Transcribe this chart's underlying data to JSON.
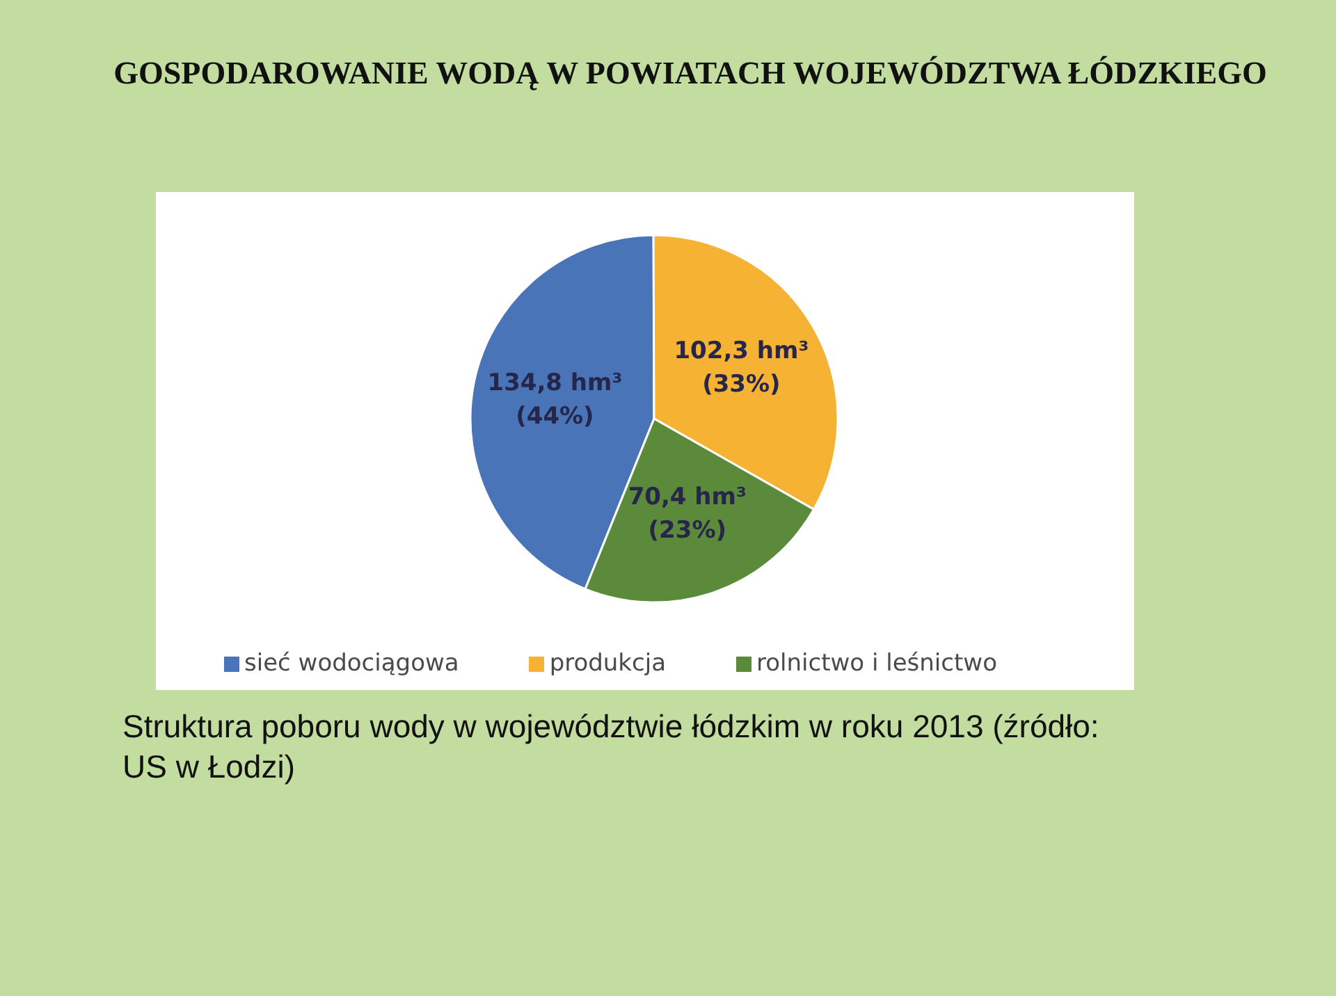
{
  "chart_data": {
    "type": "pie",
    "title": "GOSPODAROWANIE WODĄ W POWIATACH WOJEWÓDZTWA ŁÓDZKIEGO",
    "categories": [
      "sieć wodociągowa",
      "produkcja",
      "rolnictwo i leśnictwo"
    ],
    "values": [
      134.8,
      102.3,
      70.4
    ],
    "colors": [
      "#4a74b8",
      "#f6b233",
      "#5b8a3b"
    ],
    "value_labels": [
      "134,8 hm³\n(44%)",
      "102,3 hm³\n(33%)",
      "70,4 hm³\n(23%)"
    ],
    "legend": "bottom",
    "annotations": [
      "Struktura poboru wody w województwie łódzkim w roku 2013 (źródło: US w Łodzi)"
    ]
  }
}
